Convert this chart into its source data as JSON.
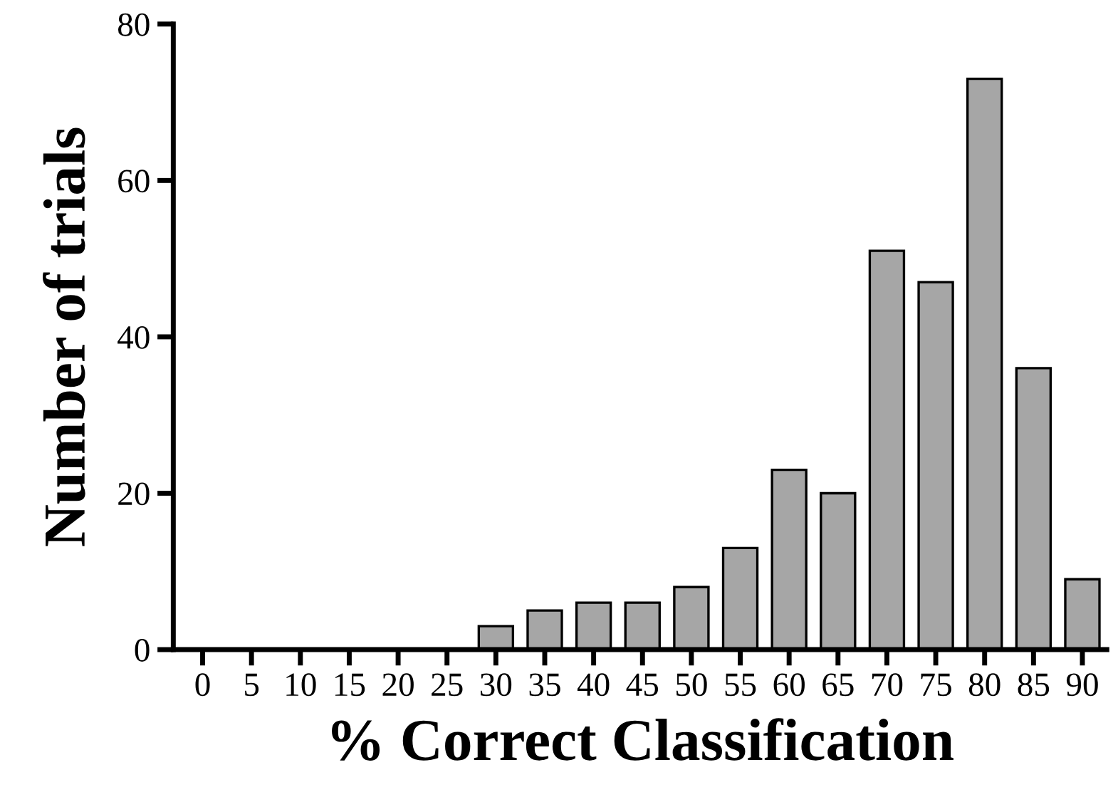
{
  "chart_data": {
    "type": "bar",
    "xlabel": "% Correct Classification",
    "ylabel": "Number of trials",
    "categories": [
      "0",
      "5",
      "10",
      "15",
      "20",
      "25",
      "30",
      "35",
      "40",
      "45",
      "50",
      "55",
      "60",
      "65",
      "70",
      "75",
      "80",
      "85",
      "90"
    ],
    "values": [
      0,
      0,
      0,
      0,
      0,
      0,
      3,
      5,
      6,
      6,
      8,
      13,
      23,
      20,
      51,
      47,
      73,
      36,
      9
    ],
    "color": "#a6a6a6",
    "ylim": [
      0,
      80
    ],
    "yticks": [
      0,
      20,
      40,
      60,
      80
    ],
    "grid": false,
    "legend": false
  }
}
